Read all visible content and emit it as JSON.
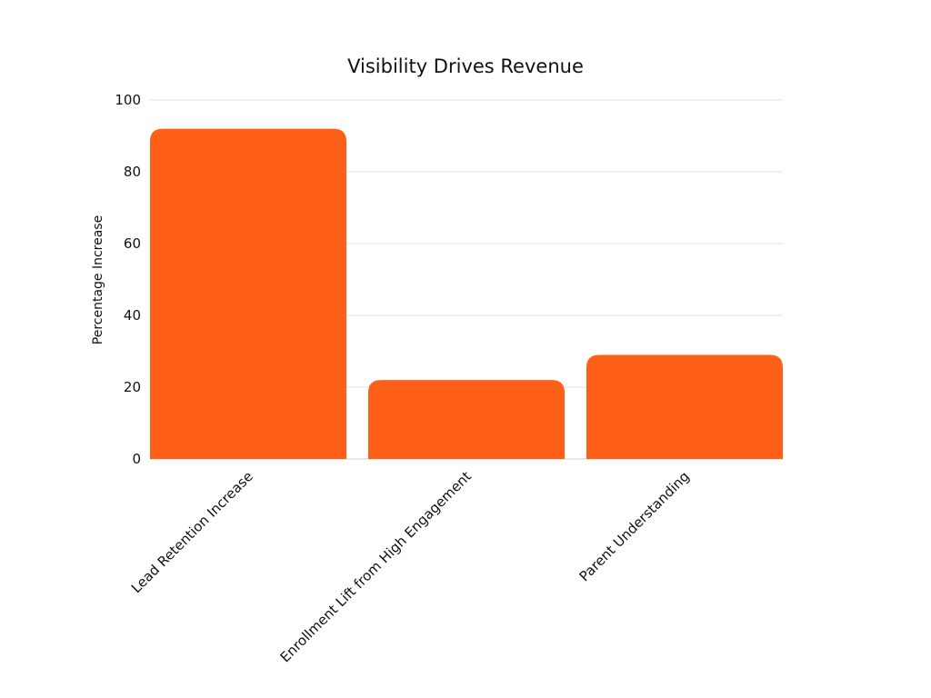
{
  "chart_data": {
    "type": "bar",
    "title": "Visibility Drives Revenue",
    "xlabel": "",
    "ylabel": "Percentage Increase",
    "categories": [
      "Lead Retention Increase",
      "Enrollment Lift from High Engagement",
      "Parent Understanding"
    ],
    "values": [
      92,
      22,
      29
    ],
    "ylim": [
      0,
      100
    ],
    "yticks": [
      0,
      20,
      40,
      60,
      80,
      100
    ],
    "grid": true,
    "legend": "none",
    "colors": {
      "bar": "#FF6017",
      "grid": "#E3E3E3",
      "axis": "#CFCFCF",
      "text": "#111111"
    }
  }
}
